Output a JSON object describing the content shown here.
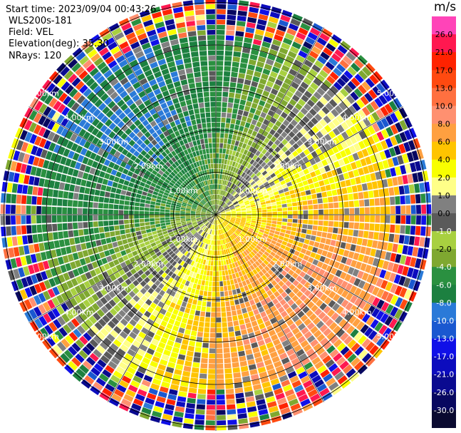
{
  "info": {
    "start_time": "Start time: 2023/09/04 00:43:26",
    "instrument": "WLS200s-181",
    "field": "Field: VEL",
    "elevation": "Elevation(deg): 35.30",
    "nrays": "NRays: 120"
  },
  "colorbar": {
    "unit": "m/s",
    "ticks": [
      "26.0",
      "21.0",
      "17.0",
      "13.0",
      "10.0",
      "8.0",
      "6.0",
      "4.0",
      "2.0",
      "1.0",
      "0.0",
      "-1.0",
      "-2.0",
      "-4.0",
      "-6.0",
      "-8.0",
      "-10.0",
      "-13.0",
      "-17.0",
      "-21.0",
      "-26.0",
      "-30.0"
    ],
    "colors": [
      "#ff44b8",
      "#ff1850",
      "#ff2200",
      "#ff4a10",
      "#ff7040",
      "#ff9070",
      "#ffa040",
      "#ffc400",
      "#f8ff00",
      "#ffff88",
      "#808080",
      "#5a5a5a",
      "#a8d040",
      "#7fa830",
      "#2a9040",
      "#1c8040",
      "#2a7ad8",
      "#1a58d0",
      "#1010e8",
      "#0c0cbe",
      "#0a0a90",
      "#080860",
      "#0a0a30"
    ]
  },
  "chart_data": {
    "type": "heatmap",
    "projection": "polar-ppi",
    "field": "VEL",
    "units": "m/s",
    "nrays": 120,
    "range_rings_km": [
      1.0,
      2.0,
      3.0,
      4.0,
      5.0
    ],
    "ring_labels": [
      "1.00km",
      "2.00km",
      "3.00km",
      "4.00km",
      "5.00km"
    ],
    "vmin": -30.0,
    "vmax": 26.0,
    "approx_pattern": {
      "positive_toward_azimuth_deg": 135,
      "negative_toward_azimuth_deg": 315,
      "peak_abs_velocity_ms": 8.0,
      "noise_beyond_km": 4.1
    }
  }
}
